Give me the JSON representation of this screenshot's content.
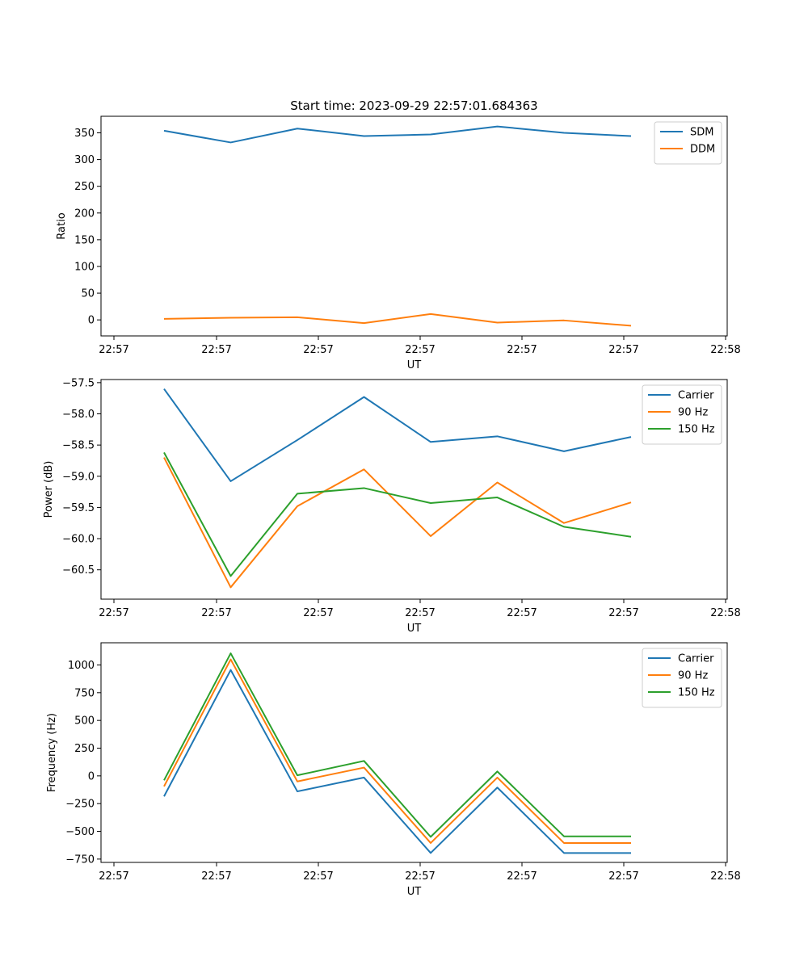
{
  "figure_title": "Start time: 2023-09-29 22:57:01.684363",
  "chart_data": [
    {
      "type": "line",
      "id": "ratio",
      "title": "Start time: 2023-09-29 22:57:01.684363",
      "xlabel": "UT",
      "ylabel": "Ratio",
      "x_tick_labels": [
        "22:57",
        "22:57",
        "22:57",
        "22:57",
        "22:57",
        "22:57",
        "22:58"
      ],
      "ylim": [
        -30,
        381
      ],
      "y_ticks": [
        0,
        50,
        100,
        150,
        200,
        250,
        300,
        350
      ],
      "legend_position": "top-right",
      "series": [
        {
          "name": "SDM",
          "color": "#1f77b4",
          "values": [
            354,
            332,
            358,
            344,
            347,
            362,
            350,
            344
          ]
        },
        {
          "name": "DDM",
          "color": "#ff7f0e",
          "values": [
            2,
            4,
            5,
            -6,
            11,
            -5,
            -1,
            -11
          ]
        }
      ]
    },
    {
      "type": "line",
      "id": "power",
      "xlabel": "UT",
      "ylabel": "Power (dB)",
      "x_tick_labels": [
        "22:57",
        "22:57",
        "22:57",
        "22:57",
        "22:57",
        "22:57",
        "22:58"
      ],
      "ylim": [
        -60.97,
        -57.45
      ],
      "y_ticks": [
        -60.5,
        -60.0,
        -59.5,
        -59.0,
        -58.5,
        -58.0,
        -57.5
      ],
      "y_tick_labels": [
        "−60.5",
        "−60.0",
        "−59.5",
        "−59.0",
        "−58.5",
        "−58.0",
        "−57.5"
      ],
      "legend_position": "top-right",
      "series": [
        {
          "name": "Carrier",
          "color": "#1f77b4",
          "values": [
            -57.6,
            -59.08,
            -58.42,
            -57.73,
            -58.45,
            -58.36,
            -58.6,
            -58.37
          ]
        },
        {
          "name": "90 Hz",
          "color": "#ff7f0e",
          "values": [
            -58.7,
            -60.78,
            -59.48,
            -58.89,
            -59.96,
            -59.1,
            -59.75,
            -59.42
          ]
        },
        {
          "name": "150 Hz",
          "color": "#2ca02c",
          "values": [
            -58.62,
            -60.6,
            -59.28,
            -59.19,
            -59.43,
            -59.34,
            -59.81,
            -59.97
          ]
        }
      ]
    },
    {
      "type": "line",
      "id": "frequency",
      "xlabel": "UT",
      "ylabel": "Frequency (Hz)",
      "x_tick_labels": [
        "22:57",
        "22:57",
        "22:57",
        "22:57",
        "22:57",
        "22:57",
        "22:58"
      ],
      "ylim": [
        -780,
        1200
      ],
      "y_ticks": [
        -750,
        -500,
        -250,
        0,
        250,
        500,
        750,
        1000
      ],
      "y_tick_labels": [
        "−750",
        "−500",
        "−250",
        "0",
        "250",
        "500",
        "750",
        "1000"
      ],
      "legend_position": "top-right",
      "series": [
        {
          "name": "Carrier",
          "color": "#1f77b4",
          "values": [
            -185,
            955,
            -140,
            -15,
            -695,
            -105,
            -695,
            -695
          ]
        },
        {
          "name": "90 Hz",
          "color": "#ff7f0e",
          "values": [
            -95,
            1050,
            -50,
            75,
            -605,
            -15,
            -605,
            -605
          ]
        },
        {
          "name": "150 Hz",
          "color": "#2ca02c",
          "values": [
            -40,
            1105,
            5,
            135,
            -550,
            40,
            -545,
            -545
          ]
        }
      ]
    }
  ]
}
